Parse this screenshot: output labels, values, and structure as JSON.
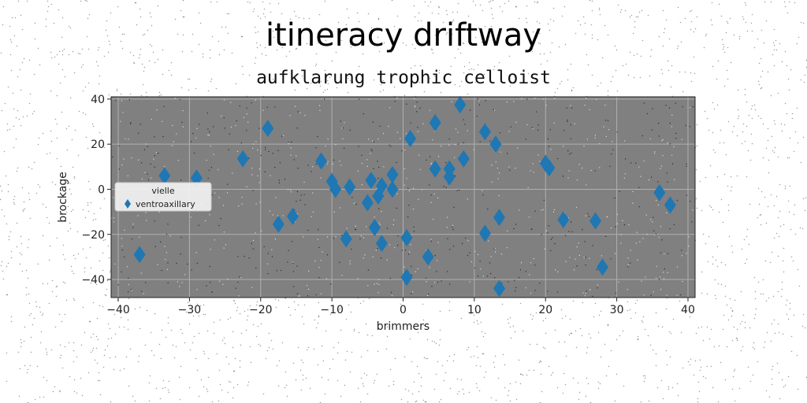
{
  "colors": {
    "plot_background": "#808080",
    "marker": "#1f77b4",
    "grid": "#b0b0b0"
  },
  "chart_data": {
    "type": "scatter",
    "title": "itineracy driftway",
    "subtitle": "aufklarung trophic celloist",
    "xlabel": "brimmers",
    "ylabel": "brockage",
    "xlim": [
      -41,
      41
    ],
    "ylim": [
      -48,
      41
    ],
    "xticks": [
      -40,
      -30,
      -20,
      -10,
      0,
      10,
      20,
      30,
      40
    ],
    "xtick_labels": [
      "−40",
      "−30",
      "−20",
      "−10",
      "0",
      "10",
      "20",
      "30",
      "40"
    ],
    "yticks": [
      -40,
      -20,
      0,
      20,
      40
    ],
    "ytick_labels": [
      "−40",
      "−20",
      "0",
      "20",
      "40"
    ],
    "grid": true,
    "legend": {
      "title": "vielle",
      "placement": "center-left",
      "entries": [
        "ventroaxillary"
      ]
    },
    "series": [
      {
        "name": "ventroaxillary",
        "marker": "thin-diamond",
        "points": [
          [
            -37,
            -29
          ],
          [
            -33.5,
            6
          ],
          [
            -29,
            5
          ],
          [
            -22.5,
            13.5
          ],
          [
            -19,
            27
          ],
          [
            -17.5,
            -15.5
          ],
          [
            -15.5,
            -12
          ],
          [
            -11.5,
            12.5
          ],
          [
            -10,
            3.5
          ],
          [
            -9.5,
            0
          ],
          [
            -8,
            -22
          ],
          [
            -7.5,
            1
          ],
          [
            -5,
            -6
          ],
          [
            -4.5,
            4
          ],
          [
            -4,
            -17
          ],
          [
            -3.5,
            -3
          ],
          [
            -3,
            1.5
          ],
          [
            -3,
            -24
          ],
          [
            -1.5,
            0
          ],
          [
            -1.5,
            6.5
          ],
          [
            0.5,
            -39
          ],
          [
            0.5,
            -21.5
          ],
          [
            1,
            22.5
          ],
          [
            3.5,
            -30
          ],
          [
            4.5,
            29.5
          ],
          [
            4.5,
            9
          ],
          [
            6.5,
            9
          ],
          [
            6.5,
            5.5
          ],
          [
            8,
            37.5
          ],
          [
            8.5,
            13.5
          ],
          [
            11.5,
            25.5
          ],
          [
            11.5,
            -19.5
          ],
          [
            13,
            20
          ],
          [
            13.5,
            -12.5
          ],
          [
            13.5,
            -44
          ],
          [
            20,
            11.5
          ],
          [
            20.5,
            9.5
          ],
          [
            22.5,
            -13.5
          ],
          [
            27,
            -14
          ],
          [
            28,
            -34.5
          ],
          [
            36,
            -1.5
          ],
          [
            37.5,
            -7
          ]
        ]
      }
    ]
  }
}
